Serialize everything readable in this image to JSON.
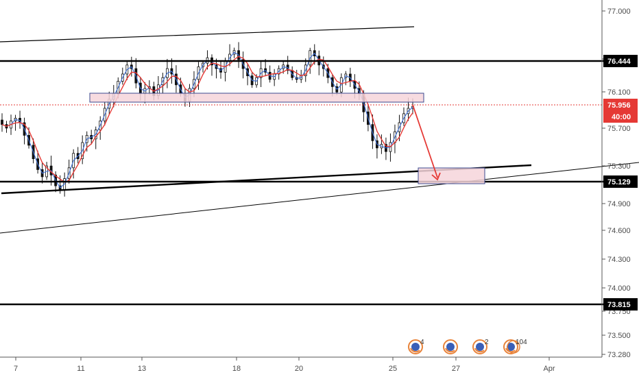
{
  "chart_data": {
    "type": "candlestick",
    "y_axis": {
      "range": [
        73.2,
        77.1
      ],
      "ticks": [
        "77.000",
        "76.500",
        "76.100",
        "75.700",
        "75.300",
        "74.900",
        "74.600",
        "74.300",
        "74.000",
        "73.750",
        "73.500",
        "73.280"
      ]
    },
    "x_axis": {
      "ticks": [
        "7",
        "11",
        "13",
        "18",
        "20",
        "25",
        "27",
        "Apr"
      ]
    },
    "horizontal_levels": [
      {
        "value": 76.444,
        "label": "76.444"
      },
      {
        "value": 75.129,
        "label": "75.129"
      },
      {
        "value": 73.815,
        "label": "73.815"
      }
    ],
    "current_price": {
      "value": 75.956,
      "label": "75.956",
      "countdown": "40:00"
    },
    "candle_closes": [
      75.78,
      75.74,
      75.82,
      75.85,
      75.8,
      75.66,
      75.55,
      75.4,
      75.28,
      75.2,
      75.32,
      75.22,
      75.1,
      75.06,
      75.18,
      75.3,
      75.46,
      75.4,
      75.58,
      75.66,
      75.62,
      75.72,
      75.82,
      75.96,
      76.06,
      76.12,
      76.26,
      76.34,
      76.44,
      76.4,
      76.24,
      76.12,
      76.18,
      76.2,
      76.1,
      76.22,
      76.3,
      76.4,
      76.34,
      76.22,
      76.12,
      76.04,
      76.18,
      76.28,
      76.42,
      76.46,
      76.52,
      76.44,
      76.4,
      76.36,
      76.48,
      76.56,
      76.6,
      76.5,
      76.4,
      76.32,
      76.22,
      76.3,
      76.4,
      76.36,
      76.28,
      76.34,
      76.4,
      76.44,
      76.38,
      76.3,
      76.28,
      76.32,
      76.44,
      76.6,
      76.54,
      76.44,
      76.4,
      76.3,
      76.2,
      76.14,
      76.3,
      76.34,
      76.26,
      76.18,
      76.12,
      75.92,
      75.78,
      75.6,
      75.52,
      75.56,
      75.48,
      75.58,
      75.7,
      75.8,
      75.9,
      75.96,
      75.98
    ],
    "events": [
      {
        "label": "4"
      },
      {
        "label": ""
      },
      {
        "label": "2"
      },
      {
        "label": "104"
      }
    ],
    "colors": {
      "candle": "#111111",
      "ma_red": "#e53935",
      "ma_blue": "#3d6fd6",
      "level_line": "#000000",
      "current_price": "#e53935",
      "zone_fill": "#f6d5da",
      "zone_border": "#3b4a8f",
      "arrow": "#e53935"
    }
  }
}
